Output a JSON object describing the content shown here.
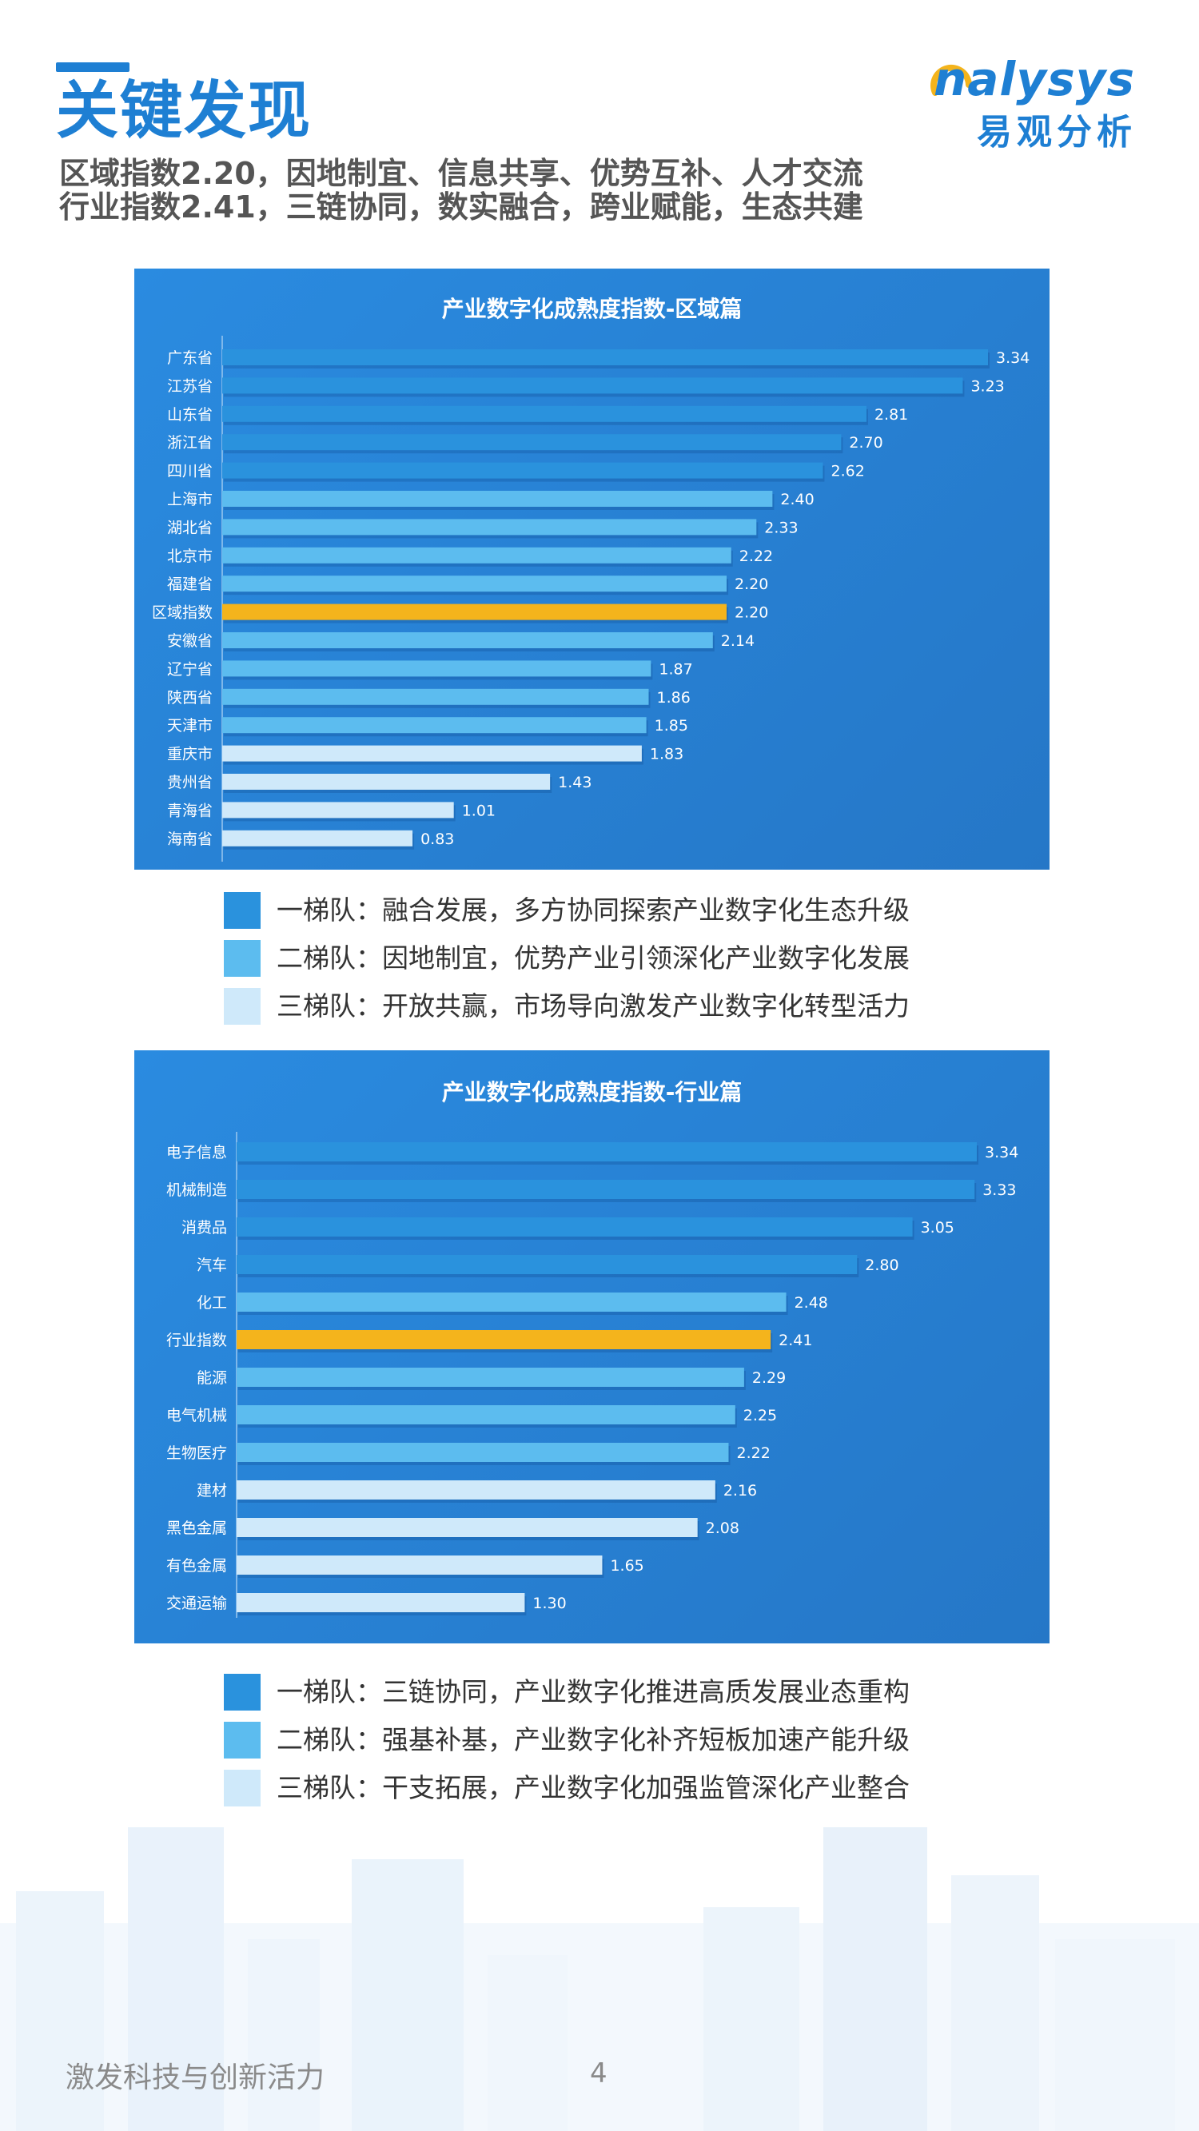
{
  "header": {
    "title": "关键发现",
    "subtitle_lines": [
      "区域指数2.20，因地制宜、信息共享、优势互补、人才交流",
      "行业指数2.41，三链协同，数实融合，跨业赋能，生态共建"
    ]
  },
  "logo": {
    "english": "nalysys",
    "chinese": "易观分析"
  },
  "colors": {
    "brand": "#1e7fd3",
    "tier1": "#2a92dd",
    "tier2": "#5cbcef",
    "tier3": "#cfe9fa",
    "index_highlight": "#f4b41c",
    "panel": "#2a84d6"
  },
  "chart_data": [
    {
      "type": "bar",
      "orientation": "horizontal",
      "title": "产业数字化成熟度指数-区域篇",
      "categories": [
        "广东省",
        "江苏省",
        "山东省",
        "浙江省",
        "四川省",
        "上海市",
        "湖北省",
        "北京市",
        "福建省",
        "区域指数",
        "安徽省",
        "辽宁省",
        "陕西省",
        "天津市",
        "重庆市",
        "贵州省",
        "青海省",
        "海南省"
      ],
      "values": [
        3.34,
        3.23,
        2.81,
        2.7,
        2.62,
        2.4,
        2.33,
        2.22,
        2.2,
        2.2,
        2.14,
        1.87,
        1.86,
        1.85,
        1.83,
        1.43,
        1.01,
        0.83
      ],
      "value_labels": [
        "3.34",
        "3.23",
        "2.81",
        "2.70",
        "2.62",
        "2.40",
        "2.33",
        "2.22",
        "2.20",
        "2.20",
        "2.14",
        "1.87",
        "1.86",
        "1.85",
        "1.83",
        "1.43",
        "1.01",
        "0.83"
      ],
      "tiers": [
        1,
        1,
        1,
        1,
        1,
        2,
        2,
        2,
        2,
        0,
        2,
        2,
        2,
        2,
        3,
        3,
        3,
        3
      ],
      "xlim": [
        0,
        3.34
      ]
    },
    {
      "type": "bar",
      "orientation": "horizontal",
      "title": "产业数字化成熟度指数-行业篇",
      "categories": [
        "电子信息",
        "机械制造",
        "消费品",
        "汽车",
        "化工",
        "行业指数",
        "能源",
        "电气机械",
        "生物医疗",
        "建材",
        "黑色金属",
        "有色金属",
        "交通运输"
      ],
      "values": [
        3.34,
        3.33,
        3.05,
        2.8,
        2.48,
        2.41,
        2.29,
        2.25,
        2.22,
        2.16,
        2.08,
        1.65,
        1.3
      ],
      "value_labels": [
        "3.34",
        "3.33",
        "3.05",
        "2.80",
        "2.48",
        "2.41",
        "2.29",
        "2.25",
        "2.22",
        "2.16",
        "2.08",
        "1.65",
        "1.30"
      ],
      "tiers": [
        1,
        1,
        1,
        1,
        2,
        0,
        2,
        2,
        2,
        3,
        3,
        3,
        3
      ],
      "xlim": [
        0,
        3.34
      ]
    }
  ],
  "legend_region": [
    "一梯队：融合发展，多方协同探索产业数字化生态升级",
    "二梯队：因地制宜，优势产业引领深化产业数字化发展",
    "三梯队：开放共赢，市场导向激发产业数字化转型活力"
  ],
  "legend_industry": [
    "一梯队：三链协同，产业数字化推进高质发展业态重构",
    "二梯队：强基补基，产业数字化补齐短板加速产能升级",
    "三梯队：干支拓展，产业数字化加强监管深化产业整合"
  ],
  "footer": {
    "text": "激发科技与创新活力",
    "page_number": "4"
  }
}
